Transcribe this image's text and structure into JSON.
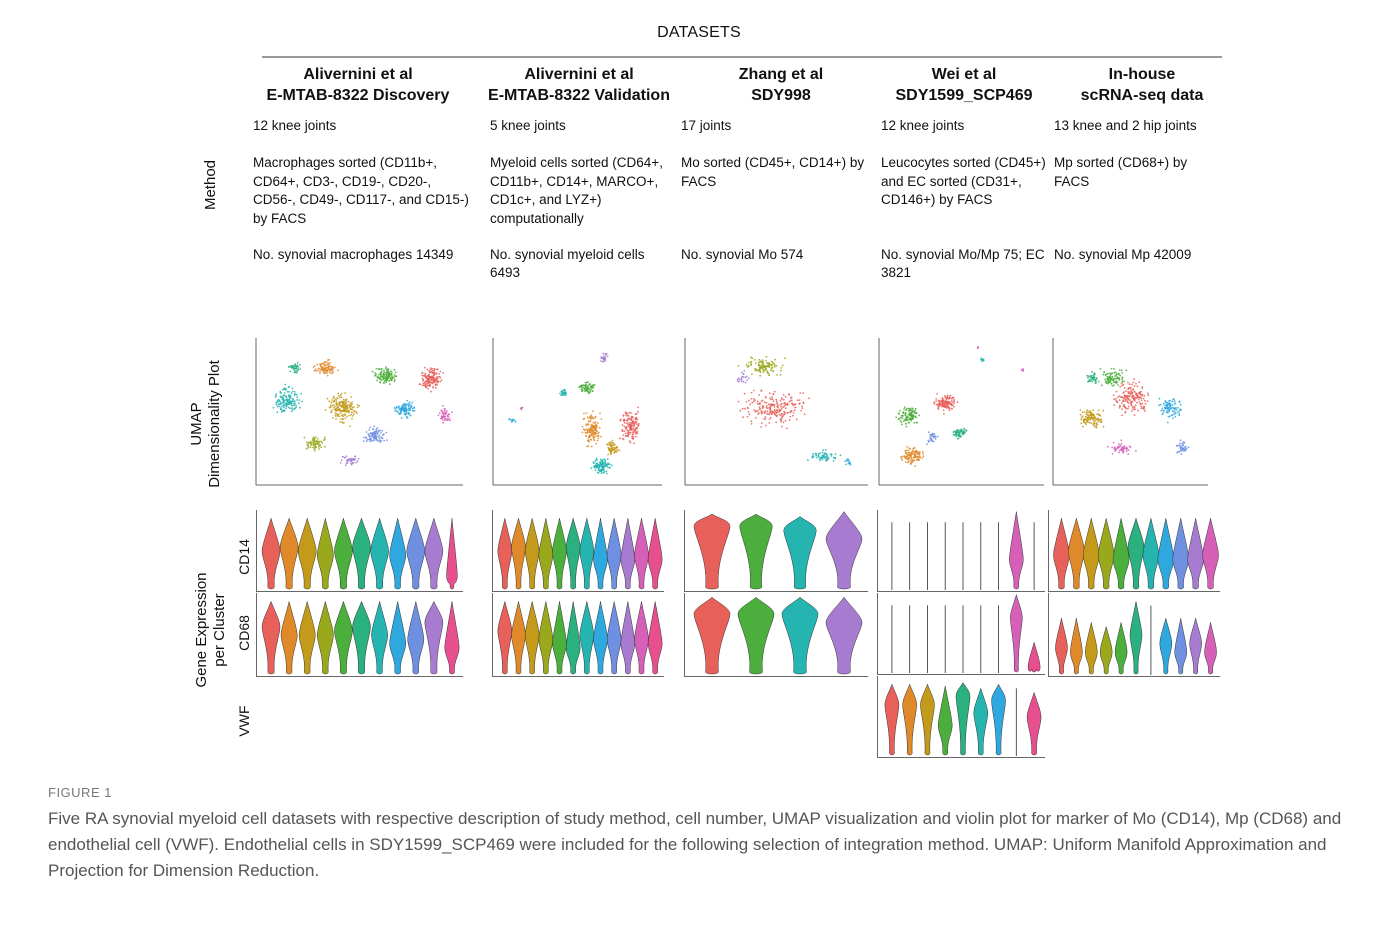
{
  "header": {
    "title": "DATASETS"
  },
  "row_labels": {
    "method": "Method",
    "umap_line1": "UMAP",
    "umap_line2": "Dimensionality Plot",
    "gene_line1": "Gene Expression",
    "gene_line2": "per Cluster",
    "cd14": "CD14",
    "cd68": "CD68",
    "vwf": "VWF"
  },
  "datasets": [
    {
      "title1": "Alivernini et al",
      "title2": "E-MTAB-8322 Discovery",
      "joints": "12 knee joints",
      "method": "Macrophages sorted (CD11b+, CD64+, CD3-, CD19-, CD20-, CD56-, CD49-, CD117-, and CD15-) by FACS",
      "count": "No. synovial macrophages 14349"
    },
    {
      "title1": "Alivernini et al",
      "title2": "E-MTAB-8322 Validation",
      "joints": "5 knee joints",
      "method": "Myeloid cells sorted (CD64+, CD11b+, CD14+, MARCO+, CD1c+, and LYZ+) computationally",
      "count": "No. synovial myeloid cells 6493"
    },
    {
      "title1": "Zhang et al",
      "title2": "SDY998",
      "joints": "17 joints",
      "method": "Mo sorted (CD45+, CD14+) by FACS",
      "count": "No. synovial Mo 574"
    },
    {
      "title1": "Wei et al",
      "title2": "SDY1599_SCP469",
      "joints": "12 knee joints",
      "method": "Leucocytes sorted (CD45+) and EC sorted (CD31+, CD146+) by FACS",
      "count": "No. synovial Mo/Mp 75; EC 3821"
    },
    {
      "title1": "In-house",
      "title2": "scRNA-seq data",
      "joints": "13 knee and 2 hip joints",
      "method": "Mp sorted (CD68+) by FACS",
      "count": "No. synovial Mp 42009"
    }
  ],
  "caption": {
    "label": "FIGURE 1",
    "text": "Five RA synovial myeloid cell datasets with respective description of study method, cell number, UMAP visualization and violin plot for marker of Mo (CD14), Mp (CD68) and endothelial cell (VWF). Endothelial cells in SDY1599_SCP469 were included for the following selection of integration method. UMAP: Uniform Manifold Approximation and Projection for Dimension Reduction."
  },
  "colors": {
    "palette": [
      "#e8605a",
      "#e0892b",
      "#c49a1a",
      "#9aa81c",
      "#4cae3c",
      "#2bb07f",
      "#25b4b0",
      "#2ea8de",
      "#6f8fe0",
      "#a77bd0",
      "#d65fb8",
      "#e84f8e"
    ],
    "rule": "#9a9a9a",
    "axis": "#666666"
  }
}
